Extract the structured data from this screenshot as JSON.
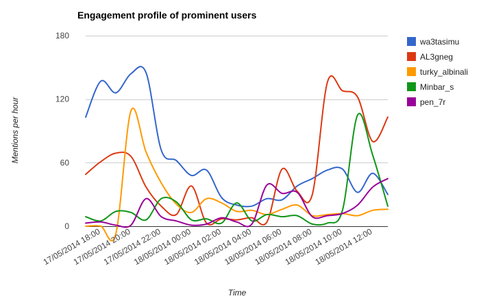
{
  "chart_data": {
    "type": "line",
    "title": "Engagement profile of prominent users",
    "xlabel": "Time",
    "ylabel": "Mentions per hour",
    "ylim": [
      0,
      180
    ],
    "yticks": [
      0,
      60,
      120,
      180
    ],
    "grid": true,
    "legend_position": "right",
    "x_tick_labels": [
      "17/05/2014 18:00",
      "17/05/2014 20:00",
      "17/05/2014 22:00",
      "18/05/2014 00:00",
      "18/05/2014 02:00",
      "18/05/2014 04:00",
      "18/05/2014 06:00",
      "18/05/2014 08:00",
      "18/05/2014 10:00",
      "18/05/2014 12:00"
    ],
    "x_tick_times": [
      "2014-05-17 18:00",
      "2014-05-17 20:00",
      "2014-05-17 22:00",
      "2014-05-18 00:00",
      "2014-05-18 02:00",
      "2014-05-18 04:00",
      "2014-05-18 06:00",
      "2014-05-18 08:00",
      "2014-05-18 10:00",
      "2014-05-18 12:00"
    ],
    "x": [
      "2014-05-17 17:00",
      "2014-05-17 18:00",
      "2014-05-17 19:00",
      "2014-05-17 20:00",
      "2014-05-17 21:00",
      "2014-05-17 22:00",
      "2014-05-17 23:00",
      "2014-05-18 00:00",
      "2014-05-18 01:00",
      "2014-05-18 02:00",
      "2014-05-18 03:00",
      "2014-05-18 04:00",
      "2014-05-18 05:00",
      "2014-05-18 06:00",
      "2014-05-18 07:00",
      "2014-05-18 08:00",
      "2014-05-18 09:00",
      "2014-05-18 10:00",
      "2014-05-18 11:00",
      "2014-05-18 12:00",
      "2014-05-18 13:00"
    ],
    "series": [
      {
        "name": "wa3tasimu",
        "color": "#3366cc",
        "values": [
          103,
          137,
          126,
          144,
          145,
          72,
          62,
          48,
          53,
          27,
          20,
          19,
          26,
          25,
          38,
          45,
          53,
          54,
          32,
          50,
          30
        ]
      },
      {
        "name": "AL3gneg",
        "color": "#dc3912",
        "values": [
          49,
          61,
          69,
          66,
          37,
          19,
          11,
          38,
          3,
          7,
          6,
          8,
          4,
          54,
          33,
          30,
          136,
          128,
          122,
          80,
          103
        ]
      },
      {
        "name": "turky_albinali",
        "color": "#ff9900",
        "values": [
          0,
          0,
          -7,
          109,
          70,
          41,
          21,
          13,
          26,
          22,
          14,
          15,
          11,
          16,
          20,
          10,
          11,
          12,
          10,
          15,
          16
        ]
      },
      {
        "name": "Minbar_s",
        "color": "#109618",
        "values": [
          9,
          5,
          14,
          13,
          6,
          26,
          23,
          6,
          7,
          3,
          22,
          5,
          11,
          9,
          10,
          2,
          3,
          15,
          105,
          67,
          19
        ]
      },
      {
        "name": "pen_7r",
        "color": "#990099",
        "values": [
          3,
          4,
          1,
          1,
          26,
          9,
          5,
          1,
          2,
          8,
          4,
          2,
          39,
          31,
          32,
          9,
          10,
          12,
          20,
          37,
          45
        ]
      }
    ]
  }
}
